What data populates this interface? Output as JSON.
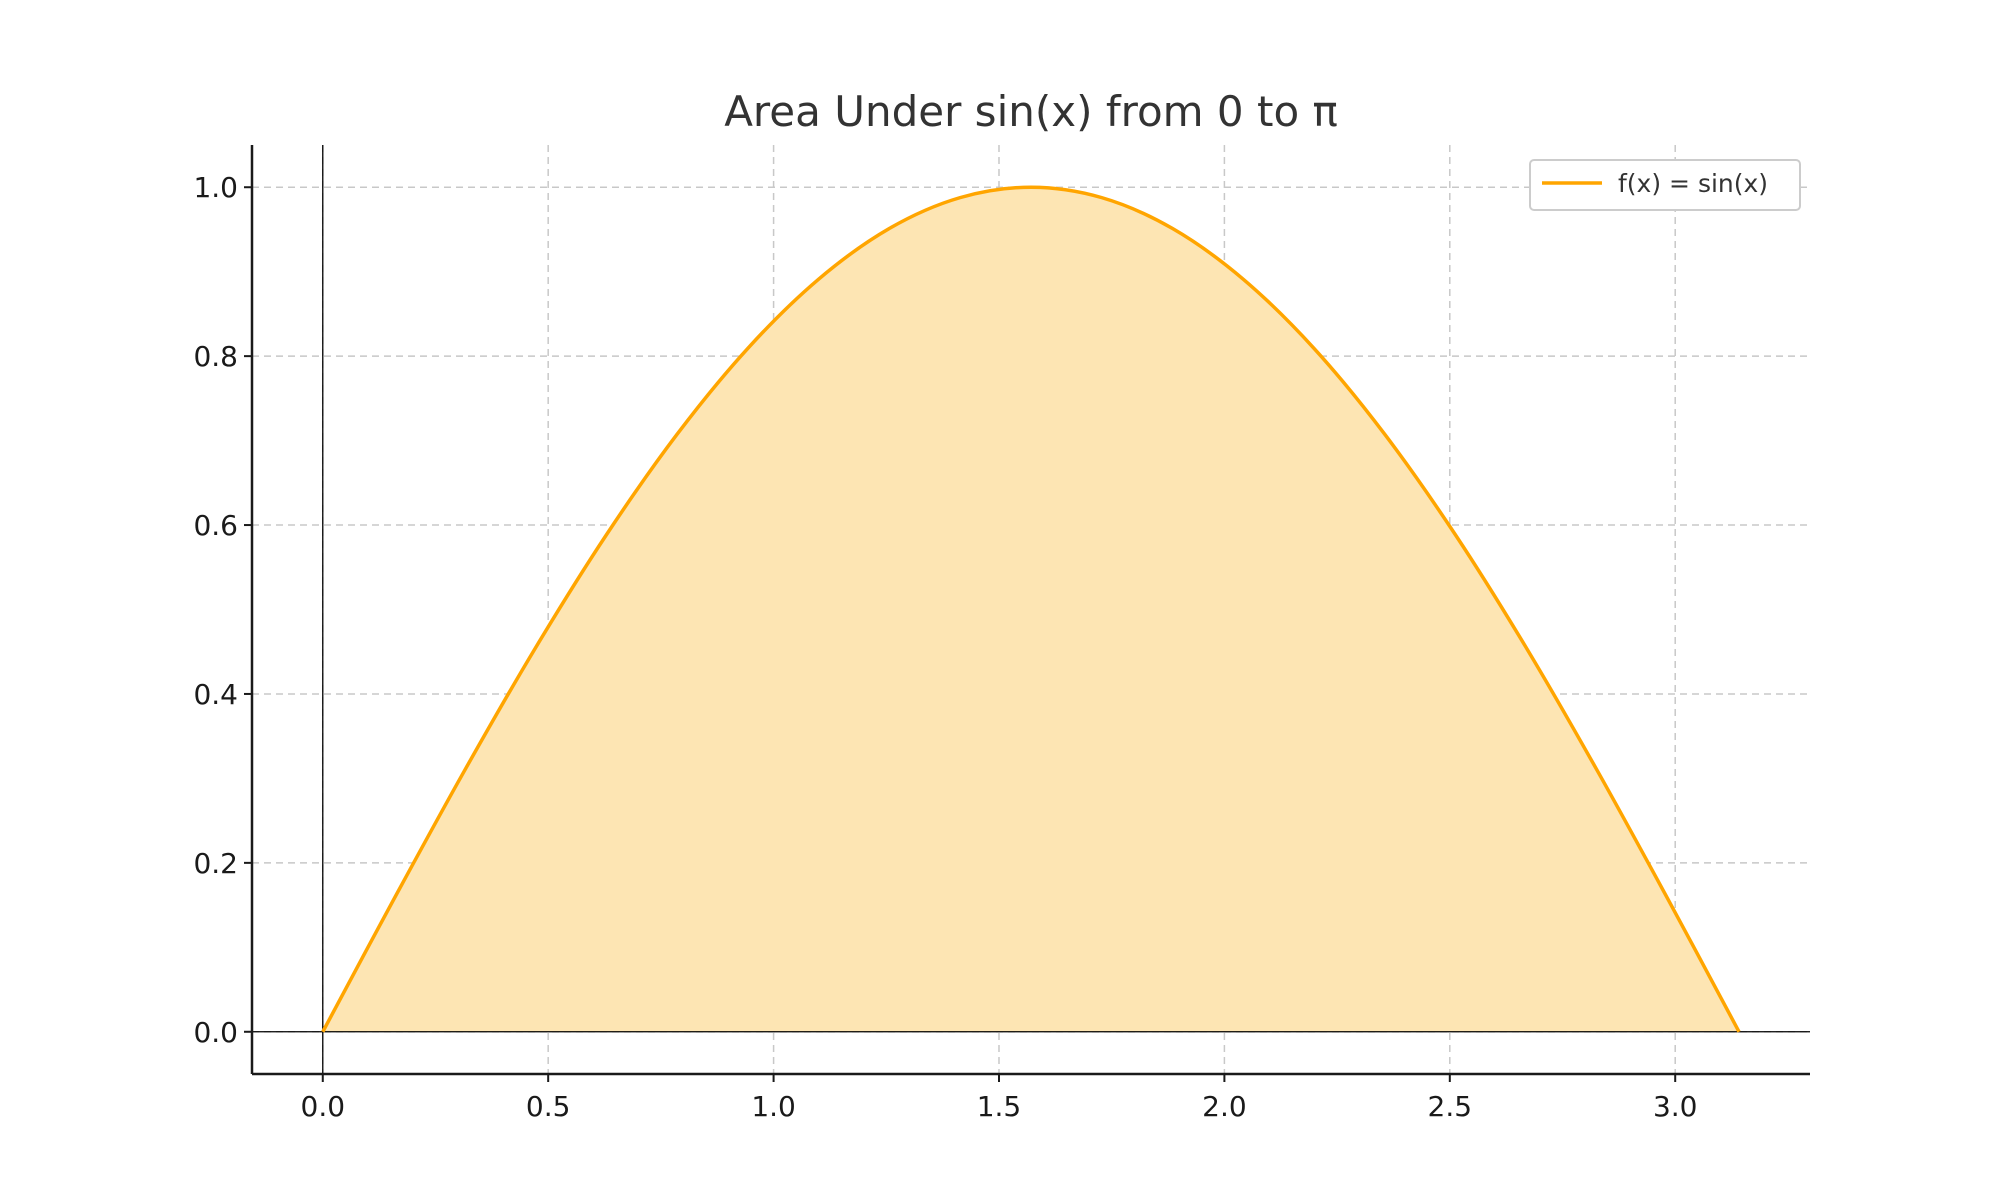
{
  "chart_data": {
    "type": "area",
    "title": "Area Under sin(x) from 0 to π",
    "xlabel": "",
    "ylabel": "",
    "xlim": [
      -0.157,
      3.299
    ],
    "ylim": [
      -0.05,
      1.05
    ],
    "xticks": [
      0.0,
      0.5,
      1.0,
      1.5,
      2.0,
      2.5,
      3.0
    ],
    "xtick_labels": [
      "0.0",
      "0.5",
      "1.0",
      "1.5",
      "2.0",
      "2.5",
      "3.0"
    ],
    "yticks": [
      0.0,
      0.2,
      0.4,
      0.6,
      0.8,
      1.0
    ],
    "ytick_labels": [
      "0.0",
      "0.2",
      "0.4",
      "0.6",
      "0.8",
      "1.0"
    ],
    "grid": true,
    "legend_position": "top-right",
    "reference_lines": {
      "x": 0,
      "y": 0
    },
    "series": [
      {
        "name": "f(x) = sin(x)",
        "color": "#ffa500",
        "fill_color": "#fde5b3",
        "fill_to": 0,
        "x": [
          0.0,
          0.1571,
          0.3142,
          0.4712,
          0.6283,
          0.7854,
          0.9425,
          1.0996,
          1.2566,
          1.4137,
          1.5708,
          1.7279,
          1.885,
          2.042,
          2.1991,
          2.3562,
          2.5133,
          2.6704,
          2.8274,
          2.9845,
          3.1416
        ],
        "y": [
          0.0,
          0.1564,
          0.309,
          0.454,
          0.5878,
          0.7071,
          0.809,
          0.891,
          0.9511,
          0.9877,
          1.0,
          0.9877,
          0.9511,
          0.891,
          0.809,
          0.7071,
          0.5878,
          0.454,
          0.309,
          0.1564,
          0.0
        ]
      }
    ]
  }
}
